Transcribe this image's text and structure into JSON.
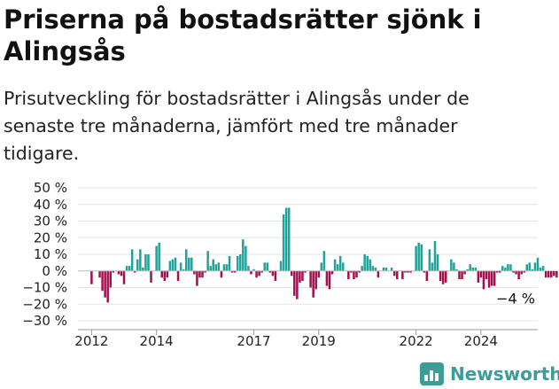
{
  "title": "Priserna på bostadsrätter sjönk i Alingsås",
  "subtitle": "Prisutveckling för bostadsrätter i Alingsås under de senaste tre månaderna, jämfört med tre månader tidigare.",
  "brand": {
    "name": "Newsworthy",
    "icon": "newsworthy-logo-icon",
    "color": "#3c9c97"
  },
  "chart_data": {
    "type": "bar",
    "ylim": [
      -30,
      50
    ],
    "yticks": [
      50,
      40,
      30,
      20,
      10,
      0,
      -10,
      -20,
      -30
    ],
    "ytick_labels": [
      "50 %",
      "40 %",
      "30 %",
      "20 %",
      "10 %",
      "0 %",
      "−10 %",
      "−20 %",
      "−30 %"
    ],
    "x_start": 2011.58,
    "x_end": 2025.75,
    "xticks": [
      2012,
      2014,
      2017,
      2019,
      2022,
      2024
    ],
    "xtick_labels": [
      "2012",
      "2014",
      "2017",
      "2019",
      "2022",
      "2024"
    ],
    "series_start": 2012.0,
    "months_per_bar": 1,
    "positive_color": "#1fa39a",
    "negative_color": "#a3104f",
    "grid": true,
    "annotation": {
      "text": "−4 %",
      "value": -4
    },
    "values": [
      -8,
      0,
      0,
      -4,
      -12,
      -16,
      -19,
      -10,
      -1,
      0,
      -2,
      -3,
      -8,
      3,
      3,
      13,
      -1,
      7,
      13,
      2,
      10,
      10,
      -7,
      0,
      15,
      17,
      -4,
      -6,
      -4,
      6,
      7,
      8,
      -6,
      5,
      1,
      13,
      8,
      8,
      -2,
      -9,
      -4,
      -4,
      -1,
      12,
      3,
      7,
      4,
      5,
      -4,
      4,
      4,
      9,
      -1,
      -1,
      9,
      10,
      19,
      15,
      3,
      -2,
      1,
      -4,
      -3,
      -1,
      5,
      5,
      -1,
      -3,
      -6,
      0,
      6,
      34,
      38,
      38,
      -3,
      -15,
      -17,
      -7,
      -6,
      -1,
      0,
      -10,
      -16,
      -11,
      -4,
      5,
      12,
      -9,
      -11,
      -2,
      7,
      4,
      9,
      5,
      0,
      -5,
      -1,
      -5,
      -4,
      -1,
      3,
      10,
      9,
      7,
      3,
      2,
      -4,
      0,
      2,
      2,
      0,
      2,
      -3,
      -5,
      0,
      -5,
      -1,
      -1,
      -1,
      0,
      15,
      17,
      16,
      -1,
      -6,
      13,
      5,
      18,
      10,
      -6,
      -8,
      -7,
      0,
      7,
      5,
      1,
      -5,
      -5,
      -2,
      1,
      4,
      2,
      2,
      -7,
      -4,
      -11,
      -5,
      -10,
      -9,
      -9,
      -1,
      -1,
      3,
      2,
      4,
      4,
      -1,
      -2,
      -5,
      -2,
      -1,
      4,
      5,
      1,
      5,
      8,
      2,
      3,
      -4,
      -4,
      -4,
      -3,
      -4
    ]
  }
}
